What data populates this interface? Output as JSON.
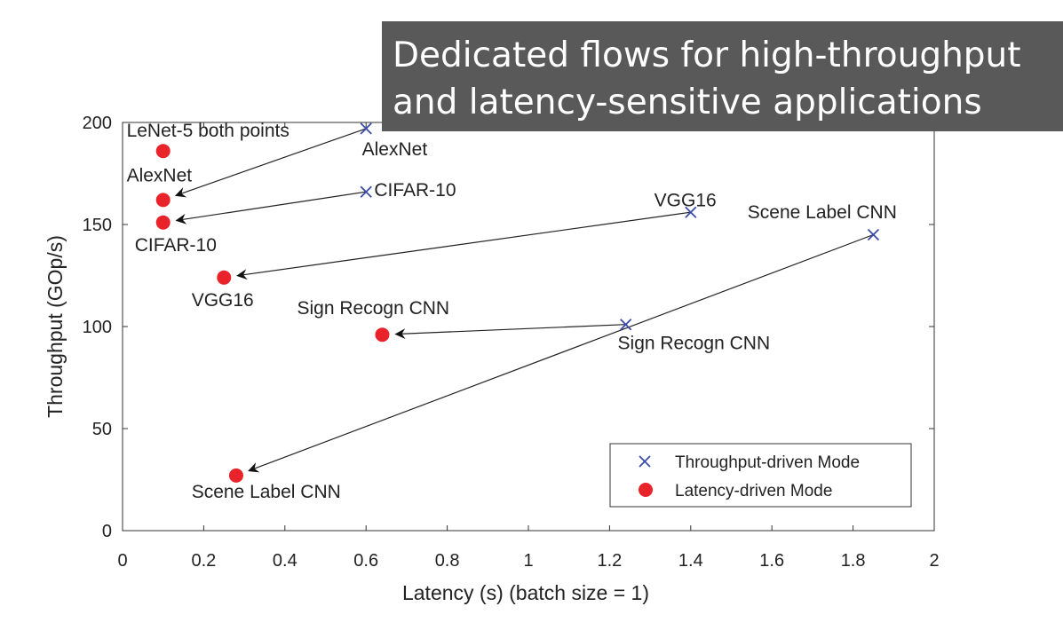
{
  "banner": {
    "line1": "Dedicated flows for high-throughput",
    "line2": "and latency-sensitive applications"
  },
  "chart_data": {
    "type": "scatter",
    "xlabel": "Latency (s) (batch size = 1)",
    "ylabel": "Throughput (GOp/s)",
    "xlim": [
      0,
      2
    ],
    "ylim": [
      0,
      200
    ],
    "xticks": [
      "0",
      "0.2",
      "0.4",
      "0.6",
      "0.8",
      "1",
      "1.2",
      "1.4",
      "1.6",
      "1.8",
      "2"
    ],
    "yticks": [
      "0",
      "50",
      "100",
      "150",
      "200"
    ],
    "grid": false,
    "legend_position": "bottom-right",
    "series": [
      {
        "name": "Throughput-driven Mode",
        "marker": "x",
        "color": "#3b4ba8",
        "points": [
          {
            "label": "AlexNet",
            "x": 0.6,
            "y": 197
          },
          {
            "label": "CIFAR-10",
            "x": 0.6,
            "y": 166
          },
          {
            "label": "VGG16",
            "x": 1.4,
            "y": 156
          },
          {
            "label": "Scene Label CNN",
            "x": 1.85,
            "y": 145
          },
          {
            "label": "Sign Recogn CNN",
            "x": 1.24,
            "y": 101
          }
        ]
      },
      {
        "name": "Latency-driven Mode",
        "marker": "circle",
        "color": "#e8232a",
        "points": [
          {
            "label": "LeNet-5 both points",
            "x": 0.1,
            "y": 186
          },
          {
            "label": "AlexNet",
            "x": 0.1,
            "y": 162
          },
          {
            "label": "CIFAR-10",
            "x": 0.1,
            "y": 151
          },
          {
            "label": "VGG16",
            "x": 0.25,
            "y": 124
          },
          {
            "label": "Sign Recogn CNN",
            "x": 0.64,
            "y": 96
          },
          {
            "label": "Scene Label CNN",
            "x": 0.28,
            "y": 27
          }
        ]
      }
    ],
    "arrows": [
      {
        "from": [
          0.6,
          197
        ],
        "to": [
          0.1,
          162
        ]
      },
      {
        "from": [
          0.6,
          166
        ],
        "to": [
          0.1,
          151
        ]
      },
      {
        "from": [
          1.4,
          156
        ],
        "to": [
          0.25,
          124
        ]
      },
      {
        "from": [
          1.24,
          101
        ],
        "to": [
          0.64,
          96
        ]
      },
      {
        "from": [
          1.85,
          145
        ],
        "to": [
          0.28,
          27
        ]
      }
    ],
    "labels": [
      {
        "text": "LeNet-5 both points",
        "x": 0.01,
        "y": 193,
        "anchor": "start"
      },
      {
        "text": "AlexNet",
        "x": 0.01,
        "y": 171,
        "anchor": "start"
      },
      {
        "text": "CIFAR-10",
        "x": 0.03,
        "y": 137,
        "anchor": "start"
      },
      {
        "text": "VGG16",
        "x": 0.17,
        "y": 110,
        "anchor": "start"
      },
      {
        "text": "Sign Recogn CNN",
        "x": 0.43,
        "y": 106,
        "anchor": "start"
      },
      {
        "text": "Scene Label CNN",
        "x": 0.17,
        "y": 16,
        "anchor": "start"
      },
      {
        "text": "AlexNet",
        "x": 0.59,
        "y": 184,
        "anchor": "start"
      },
      {
        "text": "CIFAR-10",
        "x": 0.62,
        "y": 164,
        "anchor": "start"
      },
      {
        "text": "VGG16",
        "x": 1.31,
        "y": 159,
        "anchor": "start"
      },
      {
        "text": "Scene Label CNN",
        "x": 1.54,
        "y": 153,
        "anchor": "start"
      },
      {
        "text": "Sign Recogn CNN",
        "x": 1.22,
        "y": 89,
        "anchor": "start"
      }
    ]
  }
}
